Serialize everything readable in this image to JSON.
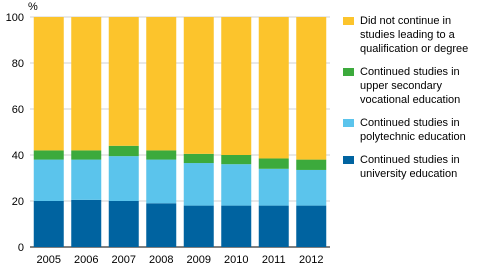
{
  "chart_data": {
    "type": "stacked_bar",
    "y_unit_label": "%",
    "categories": [
      "2005",
      "2006",
      "2007",
      "2008",
      "2009",
      "2010",
      "2011",
      "2012"
    ],
    "series": [
      {
        "name": "Continued studies in university education",
        "color": "#0063a0",
        "values": [
          20,
          20.5,
          20,
          19,
          18,
          18,
          18,
          18
        ]
      },
      {
        "name": "Continued studies in polytechnic education",
        "color": "#5bc4ec",
        "values": [
          18,
          17.5,
          19.5,
          19,
          18.5,
          18,
          16,
          15.5
        ]
      },
      {
        "name": "Continued studies in upper secondary vocational education",
        "color": "#3caa3c",
        "values": [
          4,
          4,
          4.5,
          4,
          4,
          4,
          4.5,
          4.5
        ]
      },
      {
        "name": "Did not continue in studies leading to a qualification or degree",
        "color": "#fcc42c",
        "values": [
          58,
          58,
          56,
          58,
          59.5,
          60,
          61.5,
          62
        ]
      }
    ],
    "ylim": [
      0,
      100
    ],
    "yticks": [
      0,
      20,
      40,
      60,
      80,
      100
    ],
    "grid": true
  }
}
